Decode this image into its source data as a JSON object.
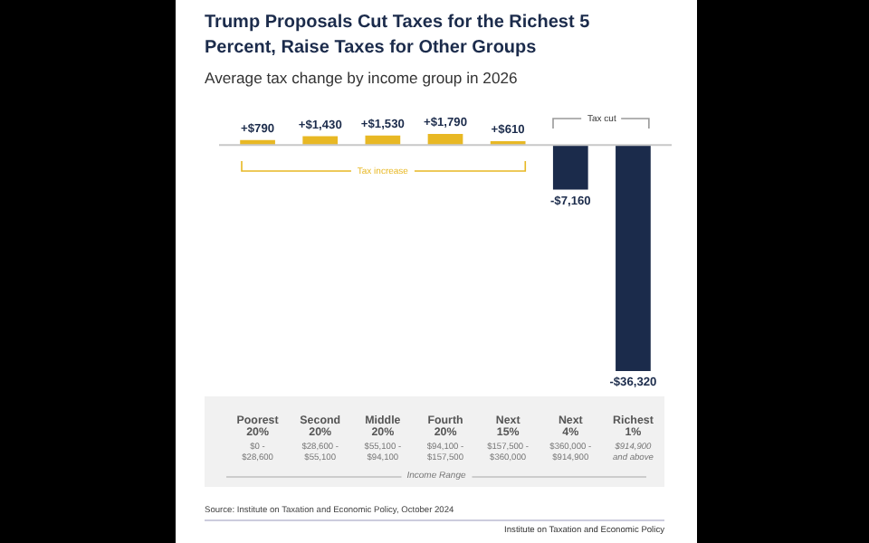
{
  "chart_data": {
    "type": "bar",
    "title": "Trump Proposals Cut Taxes for the Richest 5 Percent, Raise Taxes for Other Groups",
    "subtitle": "Average tax change by income group in 2026",
    "xlabel": "Income Range",
    "categories": [
      "Poorest 20%",
      "Second 20%",
      "Middle 20%",
      "Fourth 20%",
      "Next 15%",
      "Next 4%",
      "Richest 1%"
    ],
    "values": [
      790,
      1430,
      1530,
      1790,
      610,
      -7160,
      -36320
    ],
    "colors": [
      "#e8b824",
      "#e8b824",
      "#e8b824",
      "#e8b824",
      "#e8b824",
      "#1b2b4b",
      "#1b2b4b"
    ],
    "value_labels": [
      "+$790",
      "+$1,430",
      "+$1,530",
      "+$1,790",
      "+$610",
      "-$7,160",
      "-$36,320"
    ],
    "grid": false,
    "legend": false,
    "tick_labels": "x",
    "annotations": [
      "$0 - $28,600",
      "$28,600 - $55,100",
      "$55,100 - $94,100",
      "$94,100 - $157,500",
      "$157,500 - $360,000",
      "$360,000 - $914,900",
      "$914,900 and above",
      "Tax increase",
      "Tax cut",
      "Source: Institute on Taxation and Economic Policy, October 2024",
      "Institute on Taxation and Economic Policy"
    ]
  }
}
